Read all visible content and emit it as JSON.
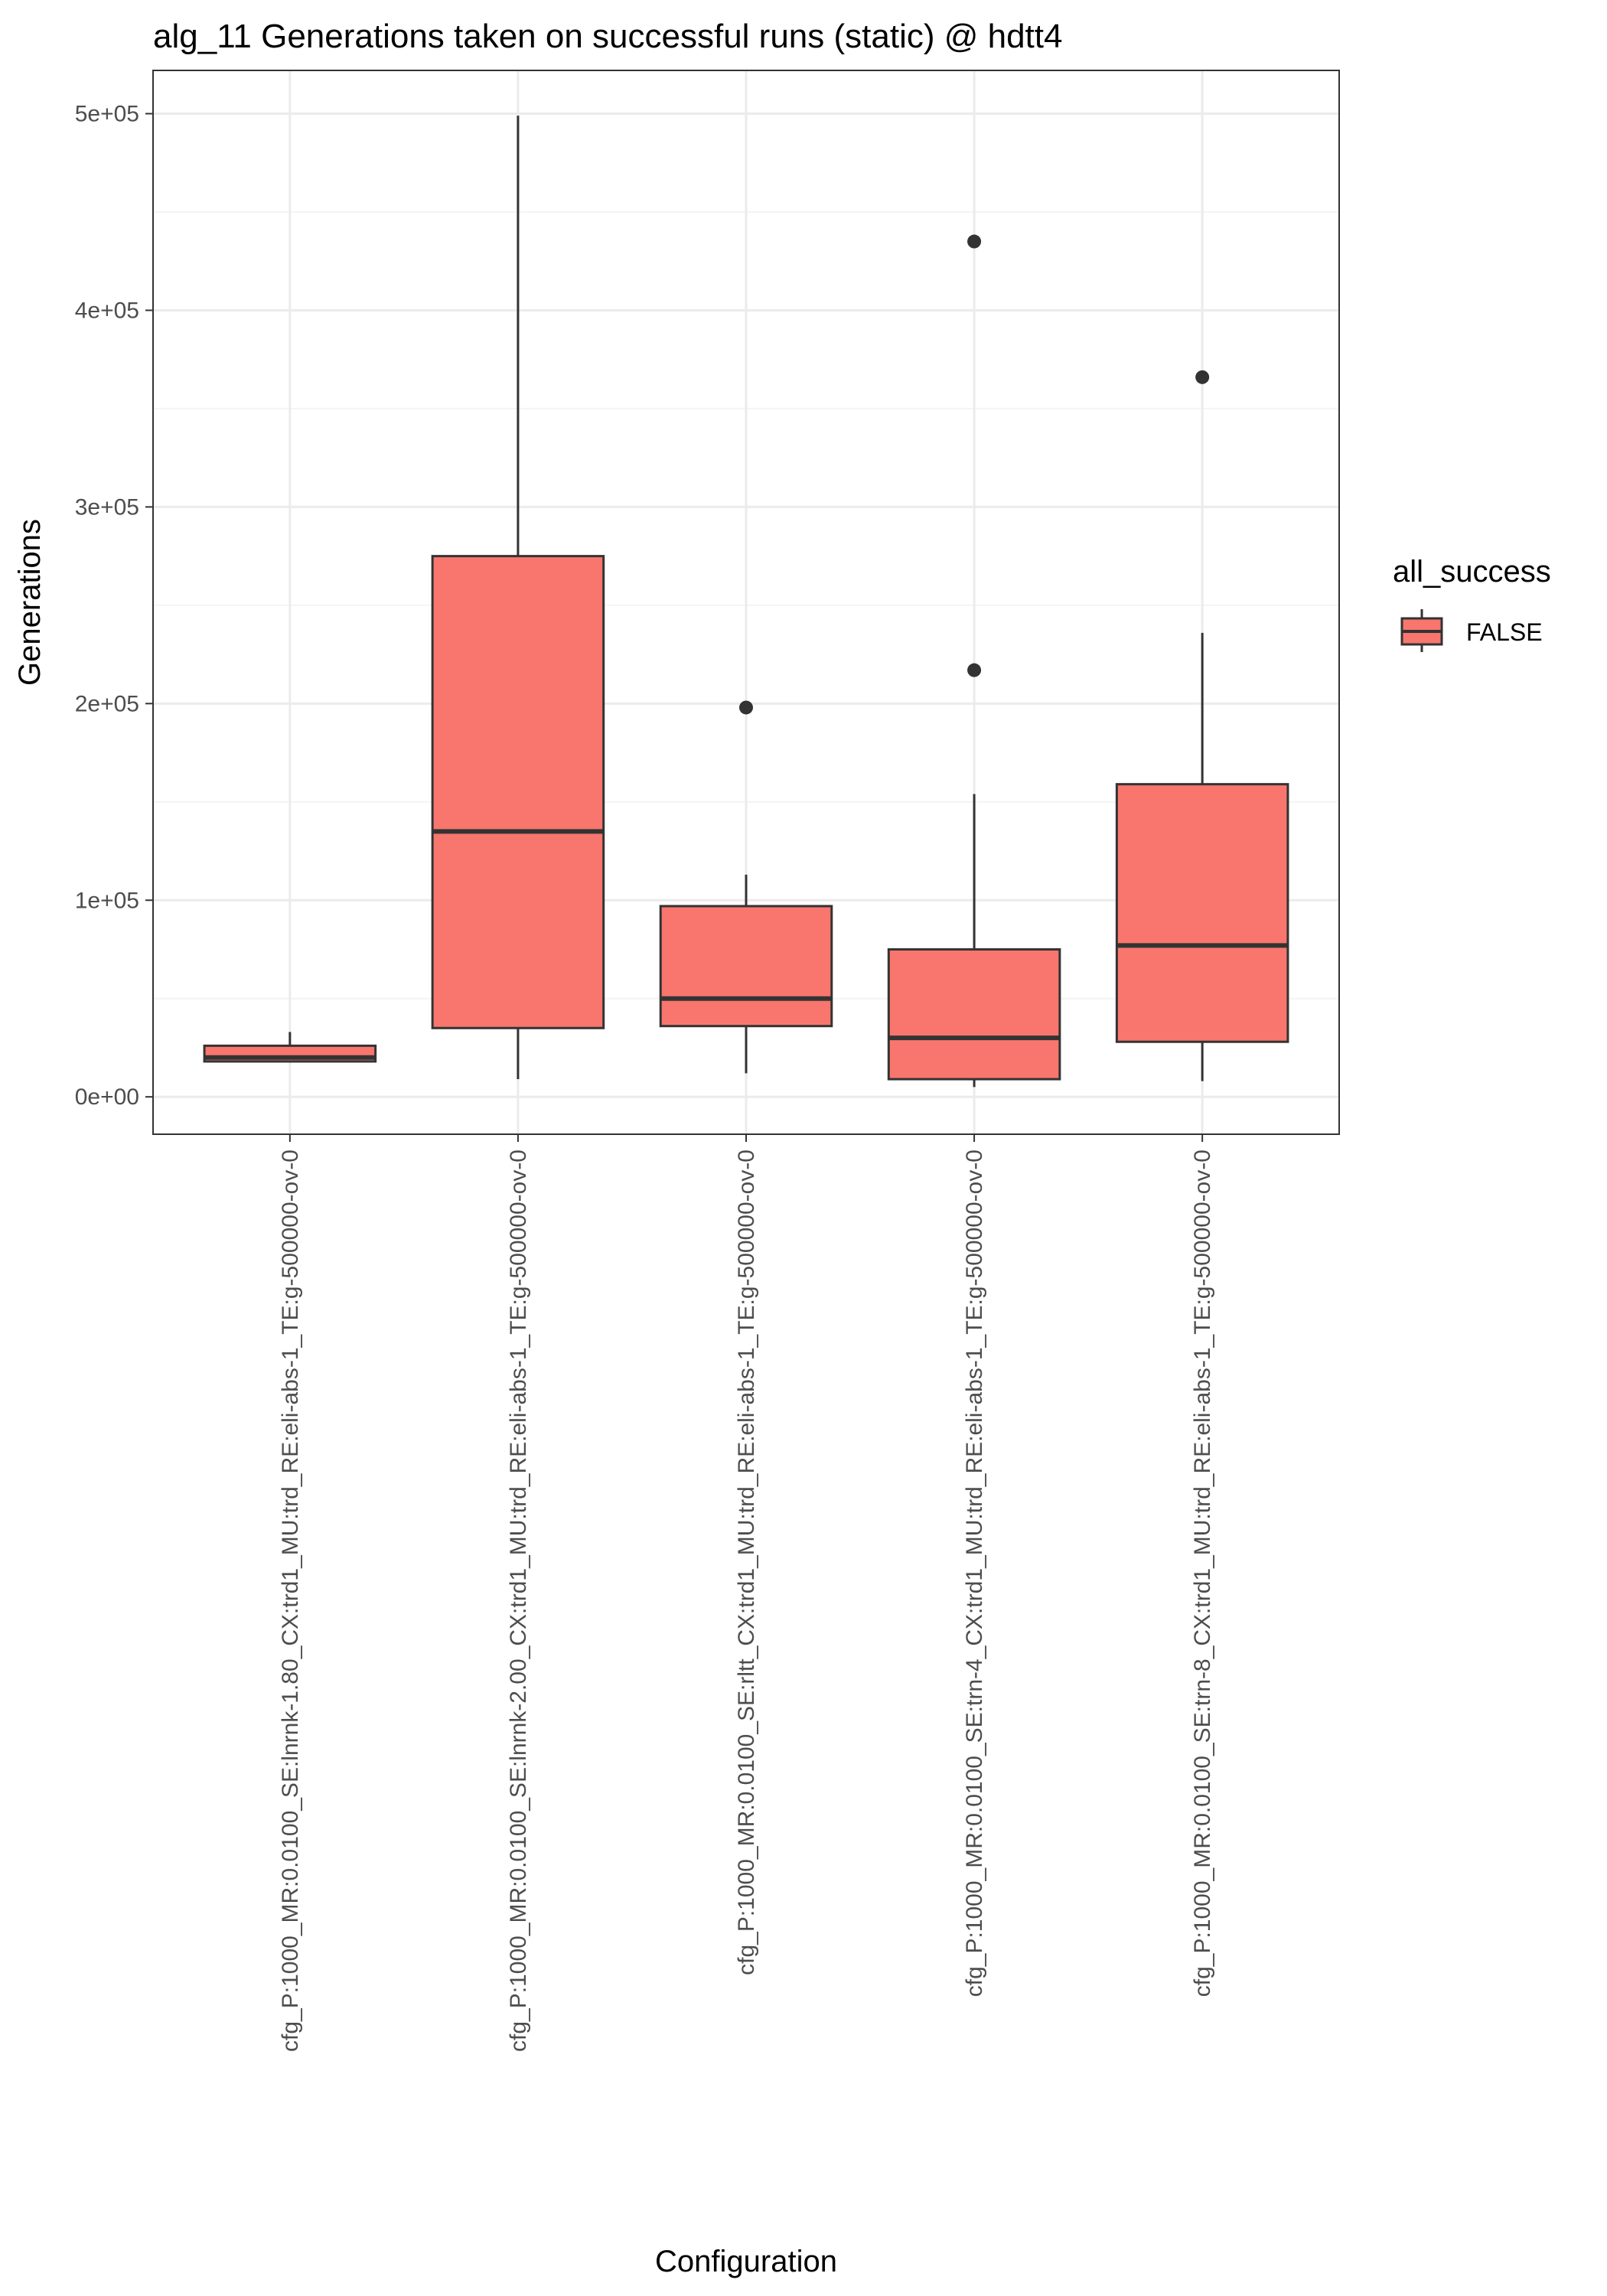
{
  "chart_data": {
    "type": "box",
    "title": "alg_11 Generations taken on successful runs (static) @ hdtt4",
    "xlabel": "Configuration",
    "ylabel": "Generations",
    "ylim": [
      -19000,
      522000
    ],
    "y_ticks": [
      0,
      100000,
      200000,
      300000,
      400000,
      500000
    ],
    "y_tick_labels": [
      "0e+00",
      "1e+05",
      "2e+05",
      "3e+05",
      "4e+05",
      "5e+05"
    ],
    "grid": true,
    "legend": {
      "title": "all_success",
      "placement": "right",
      "entries": [
        {
          "label": "FALSE",
          "color": "#F8766D"
        }
      ]
    },
    "fill_color": "#F8766D",
    "line_color": "#333333",
    "categories": [
      "cfg_P:1000_MR:0.0100_SE:lnrnk-1.80_CX:trd1_MU:trd_RE:eli-abs-1_TE:g-500000-ov-0",
      "cfg_P:1000_MR:0.0100_SE:lnrnk-2.00_CX:trd1_MU:trd_RE:eli-abs-1_TE:g-500000-ov-0",
      "cfg_P:1000_MR:0.0100_SE:rltt_CX:trd1_MU:trd_RE:eli-abs-1_TE:g-500000-ov-0",
      "cfg_P:1000_MR:0.0100_SE:trn-4_CX:trd1_MU:trd_RE:eli-abs-1_TE:g-500000-ov-0",
      "cfg_P:1000_MR:0.0100_SE:trn-8_CX:trd1_MU:trd_RE:eli-abs-1_TE:g-500000-ov-0"
    ],
    "boxes": [
      {
        "whisker_low": 18000,
        "q1": 18000,
        "median": 20000,
        "q3": 26000,
        "whisker_high": 33000,
        "outliers": []
      },
      {
        "whisker_low": 9000,
        "q1": 35000,
        "median": 135000,
        "q3": 275000,
        "whisker_high": 499000,
        "outliers": []
      },
      {
        "whisker_low": 12000,
        "q1": 36000,
        "median": 50000,
        "q3": 97000,
        "whisker_high": 113000,
        "outliers": [
          198000
        ]
      },
      {
        "whisker_low": 5000,
        "q1": 9000,
        "median": 30000,
        "q3": 75000,
        "whisker_high": 154000,
        "outliers": [
          217000,
          435000
        ]
      },
      {
        "whisker_low": 8000,
        "q1": 28000,
        "median": 77000,
        "q3": 159000,
        "whisker_high": 236000,
        "outliers": [
          366000
        ]
      }
    ]
  }
}
